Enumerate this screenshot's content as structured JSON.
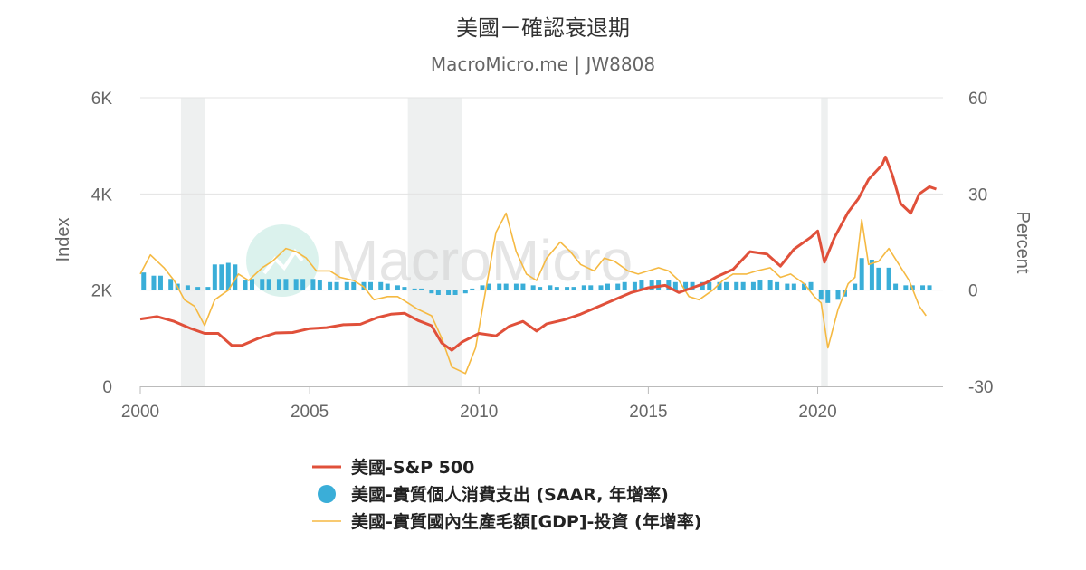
{
  "title": "美國－確認衰退期",
  "subtitle": "MacroMicro.me | JW8808",
  "watermark": "MacroMicro",
  "chart_data": {
    "type": "line",
    "x_ticks": [
      "2000",
      "2005",
      "2010",
      "2015",
      "2020"
    ],
    "x_range": [
      2000.0,
      2023.7
    ],
    "y_left": {
      "label": "Index",
      "range": [
        0,
        6000
      ],
      "ticks": [
        {
          "v": 0,
          "label": "0"
        },
        {
          "v": 2000,
          "label": "2K"
        },
        {
          "v": 4000,
          "label": "4K"
        },
        {
          "v": 6000,
          "label": "6K"
        }
      ]
    },
    "y_right": {
      "label": "Percent",
      "range": [
        -30,
        60
      ],
      "ticks": [
        {
          "v": -30,
          "label": "-30"
        },
        {
          "v": 0,
          "label": "0"
        },
        {
          "v": 30,
          "label": "30"
        },
        {
          "v": 60,
          "label": "60"
        }
      ]
    },
    "grid": true,
    "legend_position": "bottom",
    "recessions": [
      [
        2001.2,
        2001.9
      ],
      [
        2007.9,
        2009.5
      ],
      [
        2020.1,
        2020.3
      ]
    ],
    "series": [
      {
        "name": "美國-S&P 500",
        "axis": "left",
        "type": "line",
        "color": "#e0503a",
        "points": [
          [
            2000.0,
            1400
          ],
          [
            2000.5,
            1450
          ],
          [
            2001.0,
            1350
          ],
          [
            2001.5,
            1200
          ],
          [
            2001.9,
            1100
          ],
          [
            2002.3,
            1100
          ],
          [
            2002.7,
            850
          ],
          [
            2003.0,
            850
          ],
          [
            2003.5,
            1000
          ],
          [
            2004.0,
            1110
          ],
          [
            2004.5,
            1120
          ],
          [
            2005.0,
            1200
          ],
          [
            2005.5,
            1220
          ],
          [
            2006.0,
            1280
          ],
          [
            2006.5,
            1290
          ],
          [
            2007.0,
            1430
          ],
          [
            2007.4,
            1500
          ],
          [
            2007.8,
            1520
          ],
          [
            2008.2,
            1370
          ],
          [
            2008.6,
            1260
          ],
          [
            2008.9,
            900
          ],
          [
            2009.2,
            750
          ],
          [
            2009.5,
            920
          ],
          [
            2010.0,
            1100
          ],
          [
            2010.5,
            1050
          ],
          [
            2010.9,
            1250
          ],
          [
            2011.3,
            1350
          ],
          [
            2011.7,
            1150
          ],
          [
            2012.0,
            1300
          ],
          [
            2012.5,
            1380
          ],
          [
            2013.0,
            1500
          ],
          [
            2013.5,
            1650
          ],
          [
            2014.0,
            1800
          ],
          [
            2014.5,
            1950
          ],
          [
            2015.0,
            2050
          ],
          [
            2015.5,
            2100
          ],
          [
            2015.9,
            1950
          ],
          [
            2016.3,
            2050
          ],
          [
            2016.7,
            2150
          ],
          [
            2017.0,
            2270
          ],
          [
            2017.5,
            2430
          ],
          [
            2018.0,
            2800
          ],
          [
            2018.5,
            2750
          ],
          [
            2018.9,
            2500
          ],
          [
            2019.3,
            2850
          ],
          [
            2019.8,
            3100
          ],
          [
            2020.0,
            3230
          ],
          [
            2020.2,
            2580
          ],
          [
            2020.5,
            3100
          ],
          [
            2020.9,
            3620
          ],
          [
            2021.2,
            3900
          ],
          [
            2021.5,
            4300
          ],
          [
            2021.9,
            4600
          ],
          [
            2022.0,
            4770
          ],
          [
            2022.2,
            4400
          ],
          [
            2022.45,
            3800
          ],
          [
            2022.75,
            3600
          ],
          [
            2023.0,
            4000
          ],
          [
            2023.3,
            4150
          ],
          [
            2023.5,
            4100
          ]
        ]
      },
      {
        "name": "美國-實質個人消費支出 (SAAR, 年增率)",
        "axis": "right",
        "type": "bar",
        "color": "#3aaed8",
        "points": [
          [
            2000.1,
            5.5
          ],
          [
            2000.4,
            4.5
          ],
          [
            2000.6,
            4.5
          ],
          [
            2000.9,
            3.5
          ],
          [
            2001.1,
            2.0
          ],
          [
            2001.4,
            1.5
          ],
          [
            2001.7,
            1.0
          ],
          [
            2002.0,
            1.0
          ],
          [
            2002.2,
            8.0
          ],
          [
            2002.4,
            8.0
          ],
          [
            2002.6,
            8.5
          ],
          [
            2002.8,
            8.0
          ],
          [
            2003.1,
            3.0
          ],
          [
            2003.3,
            3.5
          ],
          [
            2003.6,
            3.5
          ],
          [
            2003.8,
            3.5
          ],
          [
            2004.1,
            3.5
          ],
          [
            2004.3,
            3.5
          ],
          [
            2004.6,
            3.5
          ],
          [
            2004.8,
            3.5
          ],
          [
            2005.1,
            3.5
          ],
          [
            2005.3,
            3.0
          ],
          [
            2005.6,
            2.5
          ],
          [
            2005.8,
            2.5
          ],
          [
            2006.1,
            2.5
          ],
          [
            2006.3,
            2.5
          ],
          [
            2006.6,
            2.5
          ],
          [
            2006.8,
            2.5
          ],
          [
            2007.1,
            2.5
          ],
          [
            2007.3,
            2.0
          ],
          [
            2007.6,
            1.5
          ],
          [
            2007.8,
            1.0
          ],
          [
            2008.1,
            0.5
          ],
          [
            2008.3,
            0.5
          ],
          [
            2008.6,
            -1.0
          ],
          [
            2008.8,
            -1.5
          ],
          [
            2009.1,
            -1.5
          ],
          [
            2009.3,
            -1.5
          ],
          [
            2009.6,
            -1.0
          ],
          [
            2009.8,
            0.5
          ],
          [
            2010.1,
            1.5
          ],
          [
            2010.3,
            2.0
          ],
          [
            2010.6,
            2.0
          ],
          [
            2010.8,
            2.0
          ],
          [
            2011.1,
            2.0
          ],
          [
            2011.3,
            2.0
          ],
          [
            2011.6,
            1.5
          ],
          [
            2011.8,
            1.0
          ],
          [
            2012.1,
            1.5
          ],
          [
            2012.3,
            1.0
          ],
          [
            2012.6,
            1.0
          ],
          [
            2012.8,
            1.0
          ],
          [
            2013.1,
            1.5
          ],
          [
            2013.3,
            1.5
          ],
          [
            2013.6,
            1.5
          ],
          [
            2013.8,
            2.0
          ],
          [
            2014.1,
            2.0
          ],
          [
            2014.3,
            2.5
          ],
          [
            2014.6,
            2.5
          ],
          [
            2014.8,
            3.0
          ],
          [
            2015.1,
            3.0
          ],
          [
            2015.3,
            3.0
          ],
          [
            2015.6,
            3.0
          ],
          [
            2015.8,
            2.5
          ],
          [
            2016.1,
            2.5
          ],
          [
            2016.3,
            2.5
          ],
          [
            2016.6,
            2.5
          ],
          [
            2016.8,
            2.5
          ],
          [
            2017.1,
            2.5
          ],
          [
            2017.3,
            2.5
          ],
          [
            2017.6,
            2.5
          ],
          [
            2017.8,
            2.5
          ],
          [
            2018.1,
            2.5
          ],
          [
            2018.3,
            3.0
          ],
          [
            2018.6,
            3.0
          ],
          [
            2018.8,
            2.5
          ],
          [
            2019.1,
            2.0
          ],
          [
            2019.3,
            2.0
          ],
          [
            2019.6,
            2.0
          ],
          [
            2019.8,
            2.5
          ],
          [
            2020.1,
            -3.0
          ],
          [
            2020.3,
            -4.0
          ],
          [
            2020.6,
            -3.0
          ],
          [
            2020.8,
            -2.0
          ],
          [
            2021.1,
            2.0
          ],
          [
            2021.3,
            10.0
          ],
          [
            2021.6,
            9.5
          ],
          [
            2021.8,
            7.0
          ],
          [
            2022.1,
            7.0
          ],
          [
            2022.3,
            2.0
          ],
          [
            2022.6,
            1.5
          ],
          [
            2022.8,
            1.5
          ],
          [
            2023.1,
            1.5
          ],
          [
            2023.3,
            1.5
          ]
        ]
      },
      {
        "name": "美國-實質國內生產毛額[GDP]-投資 (年增率)",
        "axis": "right",
        "type": "line",
        "color": "#f5b942",
        "points": [
          [
            2000.0,
            5
          ],
          [
            2000.3,
            11
          ],
          [
            2000.7,
            7
          ],
          [
            2001.0,
            3
          ],
          [
            2001.3,
            -3
          ],
          [
            2001.6,
            -5
          ],
          [
            2001.9,
            -11
          ],
          [
            2002.2,
            -3
          ],
          [
            2002.6,
            0
          ],
          [
            2002.9,
            5
          ],
          [
            2003.2,
            3
          ],
          [
            2003.6,
            7
          ],
          [
            2003.9,
            9
          ],
          [
            2004.3,
            13
          ],
          [
            2004.6,
            12
          ],
          [
            2004.9,
            10
          ],
          [
            2005.2,
            6
          ],
          [
            2005.6,
            6
          ],
          [
            2005.9,
            4
          ],
          [
            2006.3,
            3
          ],
          [
            2006.6,
            1
          ],
          [
            2006.9,
            -3
          ],
          [
            2007.3,
            -2
          ],
          [
            2007.6,
            -2
          ],
          [
            2007.9,
            -4
          ],
          [
            2008.2,
            -6
          ],
          [
            2008.6,
            -8
          ],
          [
            2008.9,
            -15
          ],
          [
            2009.2,
            -24
          ],
          [
            2009.6,
            -26
          ],
          [
            2009.9,
            -18
          ],
          [
            2010.2,
            0
          ],
          [
            2010.5,
            18
          ],
          [
            2010.8,
            24
          ],
          [
            2011.1,
            12
          ],
          [
            2011.4,
            5
          ],
          [
            2011.7,
            3
          ],
          [
            2012.0,
            10
          ],
          [
            2012.4,
            15
          ],
          [
            2012.7,
            12
          ],
          [
            2013.0,
            8
          ],
          [
            2013.4,
            6
          ],
          [
            2013.7,
            10
          ],
          [
            2014.0,
            9
          ],
          [
            2014.4,
            6
          ],
          [
            2014.7,
            5
          ],
          [
            2015.0,
            6
          ],
          [
            2015.3,
            7
          ],
          [
            2015.6,
            6
          ],
          [
            2015.9,
            3
          ],
          [
            2016.2,
            -2
          ],
          [
            2016.5,
            -3
          ],
          [
            2016.9,
            0
          ],
          [
            2017.2,
            3
          ],
          [
            2017.5,
            5
          ],
          [
            2017.9,
            5
          ],
          [
            2018.2,
            6
          ],
          [
            2018.6,
            7
          ],
          [
            2018.9,
            4
          ],
          [
            2019.2,
            5
          ],
          [
            2019.6,
            2
          ],
          [
            2019.9,
            -2
          ],
          [
            2020.1,
            -4
          ],
          [
            2020.3,
            -18
          ],
          [
            2020.6,
            -6
          ],
          [
            2020.9,
            2
          ],
          [
            2021.1,
            4
          ],
          [
            2021.3,
            22
          ],
          [
            2021.5,
            8
          ],
          [
            2021.8,
            9
          ],
          [
            2022.1,
            13
          ],
          [
            2022.4,
            8
          ],
          [
            2022.7,
            3
          ],
          [
            2023.0,
            -5
          ],
          [
            2023.2,
            -8
          ]
        ]
      }
    ]
  }
}
